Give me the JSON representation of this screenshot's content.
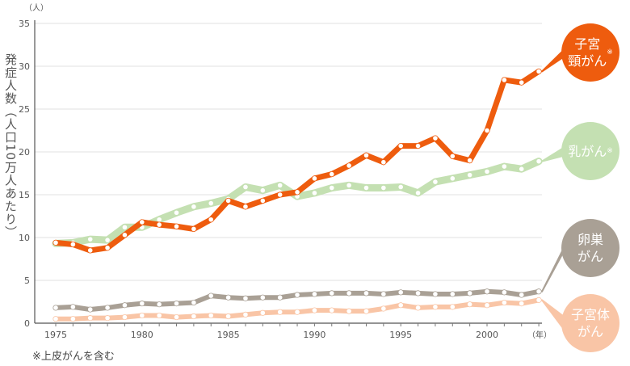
{
  "chart_data": {
    "type": "line",
    "ylabel": "発症人数（人口10万人あたり）",
    "yunit": "（人）",
    "xunit": "（年）",
    "ylim": [
      0,
      35
    ],
    "xlim": [
      1975,
      2003
    ],
    "yticks": [
      0,
      5,
      10,
      15,
      20,
      25,
      30,
      35
    ],
    "xticks": [
      1975,
      1980,
      1985,
      1990,
      1995,
      2000
    ],
    "grid": true,
    "x": [
      1975,
      1976,
      1977,
      1978,
      1979,
      1980,
      1981,
      1982,
      1983,
      1984,
      1985,
      1986,
      1987,
      1988,
      1989,
      1990,
      1991,
      1992,
      1993,
      1994,
      1995,
      1996,
      1997,
      1998,
      1999,
      2000,
      2001,
      2002,
      2003
    ],
    "series": [
      {
        "name": "子宮\n頸がん",
        "note": "※",
        "color": "#ee5c0e",
        "line_width": 7,
        "values": [
          9.4,
          9.2,
          8.5,
          8.8,
          10.3,
          11.8,
          11.5,
          11.3,
          11.0,
          12.1,
          14.3,
          13.6,
          14.3,
          15.0,
          15.3,
          16.9,
          17.4,
          18.4,
          19.6,
          18.8,
          20.7,
          20.7,
          21.6,
          19.5,
          19.0,
          22.5,
          28.4,
          28.1,
          29.4
        ]
      },
      {
        "name": "乳がん",
        "note": "※",
        "color": "#c4e0b2",
        "line_width": 9,
        "values": [
          9.3,
          9.4,
          9.8,
          9.7,
          11.2,
          11.2,
          12.1,
          12.9,
          13.6,
          14.0,
          14.5,
          15.9,
          15.5,
          16.1,
          14.8,
          15.2,
          15.8,
          16.1,
          15.8,
          15.8,
          15.9,
          15.2,
          16.5,
          16.9,
          17.3,
          17.7,
          18.3,
          18.0,
          18.9
        ]
      },
      {
        "name": "卵巣\nがん",
        "note": "",
        "color": "#a9a095",
        "line_width": 6,
        "values": [
          1.8,
          1.9,
          1.6,
          1.8,
          2.1,
          2.3,
          2.2,
          2.3,
          2.4,
          3.2,
          3.0,
          2.9,
          3.0,
          3.0,
          3.3,
          3.4,
          3.5,
          3.5,
          3.5,
          3.4,
          3.6,
          3.5,
          3.4,
          3.4,
          3.5,
          3.7,
          3.6,
          3.3,
          3.7
        ]
      },
      {
        "name": "子宮体\nがん",
        "note": "",
        "color": "#f9c5a6",
        "line_width": 6,
        "values": [
          0.5,
          0.5,
          0.6,
          0.6,
          0.7,
          0.9,
          0.9,
          0.7,
          0.8,
          0.9,
          0.8,
          1.0,
          1.2,
          1.3,
          1.3,
          1.5,
          1.5,
          1.4,
          1.4,
          1.7,
          2.1,
          1.8,
          1.9,
          1.9,
          2.2,
          2.1,
          2.4,
          2.3,
          2.7
        ]
      }
    ]
  },
  "footnote": "※上皮がんを含む"
}
